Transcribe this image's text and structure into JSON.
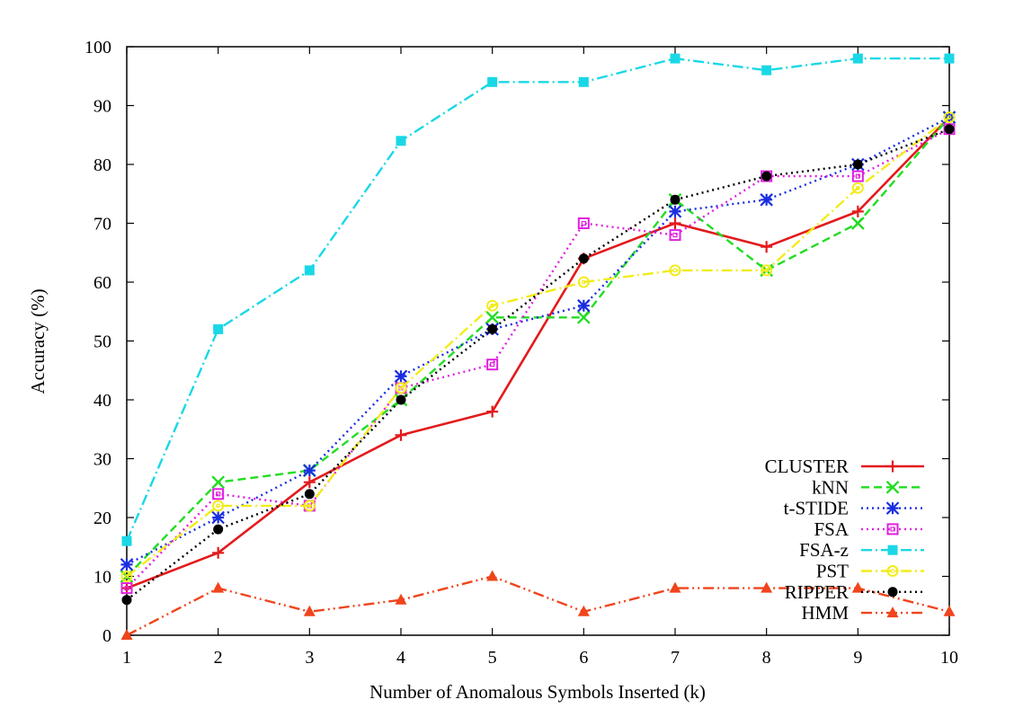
{
  "chart_data": {
    "type": "line",
    "title": "",
    "xlabel": "Number of Anomalous Symbols Inserted (k)",
    "ylabel": "Accuracy (%)",
    "xlim": [
      1,
      10
    ],
    "ylim": [
      0,
      100
    ],
    "x": [
      1,
      2,
      3,
      4,
      5,
      6,
      7,
      8,
      9,
      10
    ],
    "x_ticks": [
      "1",
      "2",
      "3",
      "4",
      "5",
      "6",
      "7",
      "8",
      "9",
      "10"
    ],
    "y_ticks": [
      "0",
      "10",
      "20",
      "30",
      "40",
      "50",
      "60",
      "70",
      "80",
      "90",
      "100"
    ],
    "grid": false,
    "legend_position": "bottom-right",
    "series": [
      {
        "name": "CLUSTER",
        "color": "#e31a1c",
        "dash": "solid",
        "marker": "plus",
        "values": [
          8,
          14,
          26,
          34,
          38,
          64,
          70,
          66,
          72,
          88
        ]
      },
      {
        "name": "kNN",
        "color": "#22dd22",
        "dash": "dashed",
        "marker": "x",
        "values": [
          10,
          26,
          28,
          40,
          54,
          54,
          74,
          62,
          70,
          88
        ]
      },
      {
        "name": "t-STIDE",
        "color": "#1a2ee0",
        "dash": "dotted",
        "marker": "asterisk",
        "values": [
          12,
          20,
          28,
          44,
          52,
          56,
          72,
          74,
          80,
          88
        ]
      },
      {
        "name": "FSA",
        "color": "#e020e0",
        "dash": "dotted",
        "marker": "open-square",
        "values": [
          8,
          24,
          22,
          42,
          46,
          70,
          68,
          78,
          78,
          86
        ]
      },
      {
        "name": "FSA-z",
        "color": "#19d8e6",
        "dash": "dash-dot",
        "marker": "filled-square",
        "values": [
          16,
          52,
          62,
          84,
          94,
          94,
          98,
          96,
          98,
          98
        ]
      },
      {
        "name": "PST",
        "color": "#f2ec1a",
        "dash": "dash-dot",
        "marker": "open-circle",
        "values": [
          10,
          22,
          22,
          42,
          56,
          60,
          62,
          62,
          76,
          88
        ]
      },
      {
        "name": "RIPPER",
        "color": "#000000",
        "dash": "dotted",
        "marker": "filled-circle",
        "values": [
          6,
          18,
          24,
          40,
          52,
          64,
          74,
          78,
          80,
          86
        ]
      },
      {
        "name": "HMM",
        "color": "#f0441c",
        "dash": "dash-dot-dot",
        "marker": "filled-triangle",
        "values": [
          0,
          8,
          4,
          6,
          10,
          4,
          8,
          8,
          8,
          4
        ]
      }
    ]
  }
}
